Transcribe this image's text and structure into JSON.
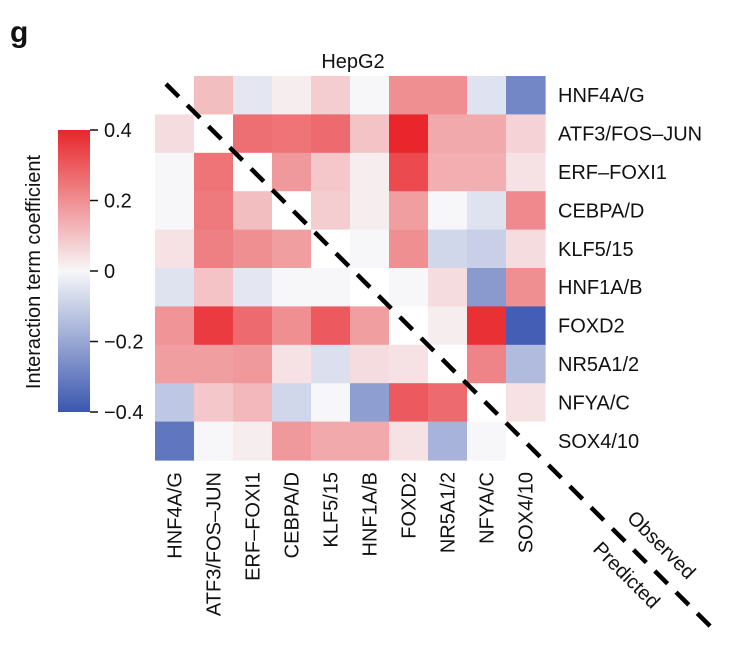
{
  "panel_label": "g",
  "chart_data": {
    "type": "heatmap",
    "title": "HepG2",
    "rows": [
      "HNF4A/G",
      "ATF3/FOS–JUN",
      "ERF–FOXI1",
      "CEBPA/D",
      "KLF5/15",
      "HNF1A/B",
      "FOXD2",
      "NR5A1/2",
      "NFYA/C",
      "SOX4/10"
    ],
    "columns": [
      "HNF4A/G",
      "ATF3/FOS–JUN",
      "ERF–FOXI1",
      "CEBPA/D",
      "KLF5/15",
      "HNF1A/B",
      "FOXD2",
      "NR5A1/2",
      "NFYA/C",
      "SOX4/10"
    ],
    "values": [
      [
        0,
        0.11,
        -0.04,
        0.02,
        0.08,
        0.0,
        0.2,
        0.2,
        -0.05,
        -0.28
      ],
      [
        0.05,
        0,
        0.26,
        0.25,
        0.27,
        0.1,
        0.42,
        0.15,
        0.15,
        0.07
      ],
      [
        0.0,
        0.25,
        0,
        0.18,
        0.09,
        0.02,
        0.33,
        0.14,
        0.14,
        0.04
      ],
      [
        0.0,
        0.24,
        0.11,
        0,
        0.08,
        0.02,
        0.17,
        0.0,
        -0.05,
        0.21
      ],
      [
        0.04,
        0.23,
        0.2,
        0.17,
        0,
        0.0,
        0.2,
        -0.08,
        -0.1,
        0.05
      ],
      [
        -0.05,
        0.1,
        -0.04,
        0.0,
        0.0,
        0,
        0.0,
        0.05,
        -0.23,
        0.2
      ],
      [
        0.19,
        0.36,
        0.27,
        0.2,
        0.3,
        0.17,
        0,
        0.02,
        0.38,
        -0.38
      ],
      [
        0.17,
        0.17,
        0.18,
        0.04,
        -0.06,
        0.05,
        0.04,
        0,
        0.22,
        -0.15
      ],
      [
        -0.12,
        0.09,
        0.12,
        -0.08,
        0.0,
        -0.22,
        0.3,
        0.27,
        0,
        0.04
      ],
      [
        -0.32,
        0.0,
        0.02,
        0.18,
        0.15,
        0.15,
        0.04,
        -0.17,
        0.0,
        0
      ]
    ],
    "colorbar": {
      "label": "Interaction term coefficient",
      "min": -0.4,
      "max": 0.4,
      "ticks": [
        0.4,
        0.2,
        0,
        -0.2,
        -0.4
      ],
      "tick_labels": [
        "0.4",
        "0.2",
        "0",
        "−0.2",
        "−0.4"
      ],
      "color_low": "#3a56b0",
      "color_mid": "#f7f7f9",
      "color_high": "#e8262b"
    },
    "diagonal_labels": {
      "upper": "Observed",
      "lower": "Predicted"
    }
  }
}
